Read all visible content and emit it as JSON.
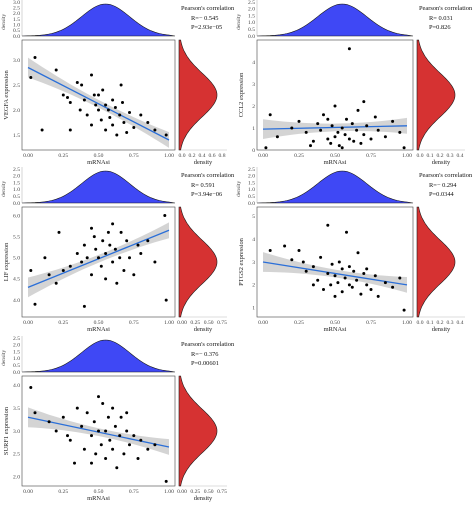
{
  "figure": {
    "density_label": "density",
    "xlabel": "mRNAsi",
    "stat_title": "Pearson's correlation"
  },
  "colors": {
    "top_density": "#3f48f5",
    "right_density": "#d63232",
    "regression_line": "#2b6fd8",
    "confidence_band": "#cccccc",
    "points": "#000000"
  },
  "chart_data": [
    {
      "type": "scatter",
      "ylabel": "VEGFA expression",
      "xlabel": "mRNAsi",
      "xlim": [
        0,
        1
      ],
      "ylim": [
        1.2,
        3.4
      ],
      "x_ticks": [
        "0.00",
        "0.25",
        "0.50",
        "0.75",
        "1.00"
      ],
      "y_ticks": [
        "1.5",
        "2.0",
        "2.5",
        "3.0"
      ],
      "stats": {
        "R": "R=− 0.545",
        "P": "P=2.93e−05"
      },
      "regression": {
        "x": [
          0,
          1
        ],
        "y": [
          2.85,
          1.4
        ]
      },
      "top_density_ticks": [
        "0.0",
        "0.5",
        "1.0",
        "1.5",
        "2.0",
        "2.5",
        "3.0"
      ],
      "right_density_ticks": [
        "0.0",
        "0.2",
        "0.4",
        "0.6",
        "0.8"
      ],
      "points": [
        [
          0.02,
          2.65
        ],
        [
          0.05,
          3.05
        ],
        [
          0.2,
          2.8
        ],
        [
          0.25,
          2.3
        ],
        [
          0.28,
          2.25
        ],
        [
          0.3,
          2.15
        ],
        [
          0.35,
          2.55
        ],
        [
          0.37,
          2.0
        ],
        [
          0.38,
          2.5
        ],
        [
          0.4,
          2.2
        ],
        [
          0.42,
          1.9
        ],
        [
          0.45,
          2.7
        ],
        [
          0.47,
          2.3
        ],
        [
          0.48,
          2.1
        ],
        [
          0.5,
          2.0
        ],
        [
          0.52,
          1.8
        ],
        [
          0.53,
          2.4
        ],
        [
          0.55,
          2.1
        ],
        [
          0.55,
          1.6
        ],
        [
          0.57,
          2.0
        ],
        [
          0.58,
          1.85
        ],
        [
          0.6,
          2.2
        ],
        [
          0.6,
          1.7
        ],
        [
          0.62,
          2.05
        ],
        [
          0.63,
          1.5
        ],
        [
          0.65,
          1.9
        ],
        [
          0.66,
          2.5
        ],
        [
          0.68,
          1.75
        ],
        [
          0.7,
          1.55
        ],
        [
          0.72,
          1.95
        ],
        [
          0.75,
          1.65
        ],
        [
          0.8,
          1.9
        ],
        [
          0.85,
          1.75
        ],
        [
          0.9,
          1.6
        ],
        [
          0.98,
          1.5
        ],
        [
          0.1,
          1.6
        ],
        [
          0.45,
          1.7
        ],
        [
          0.5,
          2.3
        ],
        [
          0.3,
          1.6
        ],
        [
          0.67,
          2.15
        ]
      ]
    },
    {
      "type": "scatter",
      "ylabel": "CCL2 expression",
      "xlabel": "mRNAsi",
      "xlim": [
        0,
        1
      ],
      "ylim": [
        0,
        5
      ],
      "x_ticks": [
        "0.00",
        "0.25",
        "0.50",
        "0.75",
        "1.00"
      ],
      "y_ticks": [
        "0",
        "1",
        "2",
        "3",
        "4"
      ],
      "stats": {
        "R": "R= 0.031",
        "P": "P=0.826"
      },
      "regression": {
        "x": [
          0,
          1
        ],
        "y": [
          0.95,
          1.1
        ]
      },
      "top_density_ticks": [
        "0.0",
        "0.5",
        "1.0",
        "1.5",
        "2.0",
        "2.5"
      ],
      "right_density_ticks": [
        "0.0",
        "0.1",
        "0.2",
        "0.3",
        "0.4"
      ],
      "points": [
        [
          0.05,
          1.6
        ],
        [
          0.1,
          0.6
        ],
        [
          0.2,
          1.0
        ],
        [
          0.25,
          1.3
        ],
        [
          0.3,
          0.8
        ],
        [
          0.35,
          0.4
        ],
        [
          0.38,
          1.2
        ],
        [
          0.4,
          0.9
        ],
        [
          0.42,
          1.6
        ],
        [
          0.45,
          0.5
        ],
        [
          0.47,
          0.3
        ],
        [
          0.48,
          1.1
        ],
        [
          0.5,
          0.6
        ],
        [
          0.5,
          2.0
        ],
        [
          0.52,
          0.8
        ],
        [
          0.53,
          0.2
        ],
        [
          0.55,
          1.0
        ],
        [
          0.55,
          0.1
        ],
        [
          0.57,
          0.7
        ],
        [
          0.58,
          1.4
        ],
        [
          0.6,
          0.5
        ],
        [
          0.6,
          4.6
        ],
        [
          0.62,
          1.2
        ],
        [
          0.63,
          0.4
        ],
        [
          0.65,
          0.9
        ],
        [
          0.66,
          1.8
        ],
        [
          0.68,
          0.3
        ],
        [
          0.7,
          0.7
        ],
        [
          0.72,
          1.1
        ],
        [
          0.75,
          0.5
        ],
        [
          0.78,
          1.5
        ],
        [
          0.8,
          0.9
        ],
        [
          0.85,
          0.6
        ],
        [
          0.9,
          1.3
        ],
        [
          0.95,
          0.8
        ],
        [
          0.02,
          0.1
        ],
        [
          0.98,
          0.1
        ],
        [
          0.45,
          1.4
        ],
        [
          0.33,
          0.2
        ],
        [
          0.7,
          2.2
        ]
      ]
    },
    {
      "type": "scatter",
      "ylabel": "LIF expression",
      "xlabel": "mRNAsi",
      "xlim": [
        0,
        1
      ],
      "ylim": [
        3.6,
        6.2
      ],
      "x_ticks": [
        "0.00",
        "0.25",
        "0.50",
        "0.75",
        "1.00"
      ],
      "y_ticks": [
        "4.0",
        "4.5",
        "5.0",
        "5.5",
        "6.0"
      ],
      "stats": {
        "R": "R= 0.591",
        "P": "P=3.94e−06"
      },
      "regression": {
        "x": [
          0,
          1
        ],
        "y": [
          4.3,
          5.65
        ]
      },
      "top_density_ticks": [
        "0.0",
        "0.5",
        "1.0",
        "1.5",
        "2.0",
        "2.5"
      ],
      "right_density_ticks": [
        "0.00",
        "0.25",
        "0.50",
        "0.75"
      ],
      "points": [
        [
          0.02,
          4.7
        ],
        [
          0.05,
          3.9
        ],
        [
          0.15,
          4.6
        ],
        [
          0.2,
          4.4
        ],
        [
          0.22,
          5.6
        ],
        [
          0.25,
          4.7
        ],
        [
          0.3,
          4.8
        ],
        [
          0.35,
          5.1
        ],
        [
          0.38,
          4.9
        ],
        [
          0.4,
          5.3
        ],
        [
          0.4,
          3.85
        ],
        [
          0.42,
          5.0
        ],
        [
          0.45,
          4.6
        ],
        [
          0.47,
          5.5
        ],
        [
          0.48,
          5.2
        ],
        [
          0.5,
          5.0
        ],
        [
          0.52,
          4.8
        ],
        [
          0.53,
          5.4
        ],
        [
          0.55,
          5.1
        ],
        [
          0.55,
          4.5
        ],
        [
          0.57,
          5.6
        ],
        [
          0.58,
          5.3
        ],
        [
          0.6,
          4.9
        ],
        [
          0.6,
          5.8
        ],
        [
          0.62,
          5.2
        ],
        [
          0.63,
          4.4
        ],
        [
          0.65,
          5.0
        ],
        [
          0.66,
          5.6
        ],
        [
          0.68,
          4.7
        ],
        [
          0.7,
          5.4
        ],
        [
          0.72,
          5.0
        ],
        [
          0.75,
          4.6
        ],
        [
          0.78,
          5.3
        ],
        [
          0.8,
          5.1
        ],
        [
          0.85,
          5.4
        ],
        [
          0.9,
          4.9
        ],
        [
          0.97,
          6.0
        ],
        [
          0.98,
          4.0
        ],
        [
          0.12,
          5.0
        ],
        [
          0.45,
          5.7
        ]
      ]
    },
    {
      "type": "scatter",
      "ylabel": "PTGS2 expression",
      "xlabel": "mRNAsi",
      "xlim": [
        0,
        1
      ],
      "ylim": [
        0.6,
        5.4
      ],
      "x_ticks": [
        "0.00",
        "0.25",
        "0.50",
        "0.75",
        "1.00"
      ],
      "y_ticks": [
        "1",
        "2",
        "3",
        "4",
        "5"
      ],
      "stats": {
        "R": "R=− 0.294",
        "P": "P=0.0344"
      },
      "regression": {
        "x": [
          0,
          1
        ],
        "y": [
          3.0,
          2.0
        ]
      },
      "top_density_ticks": [
        "0.0",
        "0.5",
        "1.0",
        "1.5",
        "2.0",
        "2.5"
      ],
      "right_density_ticks": [
        "0.0",
        "0.1",
        "0.2",
        "0.3",
        "0.4"
      ],
      "points": [
        [
          0.05,
          3.5
        ],
        [
          0.15,
          3.7
        ],
        [
          0.2,
          3.1
        ],
        [
          0.25,
          3.5
        ],
        [
          0.3,
          2.6
        ],
        [
          0.35,
          2.8
        ],
        [
          0.38,
          2.2
        ],
        [
          0.4,
          3.2
        ],
        [
          0.42,
          1.8
        ],
        [
          0.45,
          2.5
        ],
        [
          0.47,
          2.0
        ],
        [
          0.48,
          2.9
        ],
        [
          0.5,
          2.4
        ],
        [
          0.5,
          1.5
        ],
        [
          0.52,
          2.1
        ],
        [
          0.53,
          3.0
        ],
        [
          0.55,
          2.7
        ],
        [
          0.55,
          1.7
        ],
        [
          0.57,
          2.3
        ],
        [
          0.58,
          4.3
        ],
        [
          0.6,
          2.0
        ],
        [
          0.6,
          2.8
        ],
        [
          0.62,
          1.9
        ],
        [
          0.63,
          2.6
        ],
        [
          0.65,
          2.2
        ],
        [
          0.66,
          3.4
        ],
        [
          0.68,
          1.6
        ],
        [
          0.7,
          2.5
        ],
        [
          0.72,
          2.0
        ],
        [
          0.75,
          1.8
        ],
        [
          0.78,
          2.4
        ],
        [
          0.8,
          1.5
        ],
        [
          0.85,
          2.1
        ],
        [
          0.9,
          1.9
        ],
        [
          0.95,
          2.3
        ],
        [
          0.98,
          0.9
        ],
        [
          0.35,
          2.0
        ],
        [
          0.45,
          4.6
        ],
        [
          0.28,
          3.0
        ],
        [
          0.72,
          2.7
        ]
      ]
    },
    {
      "type": "scatter",
      "ylabel": "SURF1 expression",
      "xlabel": "mRNAsi",
      "xlim": [
        0,
        1
      ],
      "ylim": [
        1.8,
        4.2
      ],
      "x_ticks": [
        "0.00",
        "0.25",
        "0.50",
        "0.75",
        "1.00"
      ],
      "y_ticks": [
        "2.0",
        "2.5",
        "3.0",
        "3.5",
        "4.0"
      ],
      "stats": {
        "R": "R=− 0.376",
        "P": "P=0.00601"
      },
      "regression": {
        "x": [
          0,
          1
        ],
        "y": [
          3.3,
          2.65
        ]
      },
      "top_density_ticks": [
        "0.0",
        "0.5",
        "1.0",
        "1.5",
        "2.0",
        "2.5"
      ],
      "right_density_ticks": [
        "0.00",
        "0.25",
        "0.50",
        "0.75"
      ],
      "points": [
        [
          0.02,
          3.95
        ],
        [
          0.05,
          3.4
        ],
        [
          0.15,
          3.2
        ],
        [
          0.2,
          3.0
        ],
        [
          0.25,
          3.3
        ],
        [
          0.3,
          2.8
        ],
        [
          0.35,
          3.5
        ],
        [
          0.38,
          3.1
        ],
        [
          0.4,
          2.6
        ],
        [
          0.42,
          3.4
        ],
        [
          0.45,
          2.9
        ],
        [
          0.47,
          3.2
        ],
        [
          0.48,
          2.5
        ],
        [
          0.5,
          3.0
        ],
        [
          0.52,
          2.7
        ],
        [
          0.53,
          3.6
        ],
        [
          0.55,
          3.0
        ],
        [
          0.55,
          2.4
        ],
        [
          0.57,
          3.3
        ],
        [
          0.58,
          2.8
        ],
        [
          0.6,
          3.5
        ],
        [
          0.6,
          2.6
        ],
        [
          0.62,
          3.1
        ],
        [
          0.63,
          2.2
        ],
        [
          0.65,
          2.9
        ],
        [
          0.66,
          3.3
        ],
        [
          0.68,
          2.5
        ],
        [
          0.7,
          3.0
        ],
        [
          0.72,
          2.7
        ],
        [
          0.75,
          2.9
        ],
        [
          0.78,
          2.4
        ],
        [
          0.8,
          2.8
        ],
        [
          0.85,
          2.6
        ],
        [
          0.9,
          2.7
        ],
        [
          0.98,
          1.9
        ],
        [
          0.33,
          2.3
        ],
        [
          0.5,
          3.75
        ],
        [
          0.45,
          2.3
        ],
        [
          0.7,
          3.4
        ],
        [
          0.28,
          2.9
        ]
      ]
    }
  ]
}
